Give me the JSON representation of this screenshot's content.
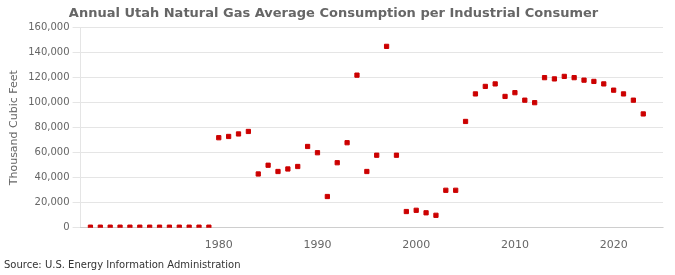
{
  "chart_data": {
    "type": "scatter",
    "title": "Annual Utah Natural Gas Average Consumption per Industrial Consumer",
    "ylabel": "Thousand Cubic Feet",
    "source": "Source: U.S. Energy Information Administration",
    "x": [
      1967,
      1968,
      1969,
      1970,
      1971,
      1972,
      1973,
      1974,
      1975,
      1976,
      1977,
      1978,
      1979,
      1980,
      1981,
      1982,
      1983,
      1984,
      1985,
      1986,
      1987,
      1988,
      1989,
      1990,
      1991,
      1992,
      1993,
      1994,
      1995,
      1996,
      1997,
      1998,
      1999,
      2000,
      2001,
      2002,
      2003,
      2004,
      2005,
      2006,
      2007,
      2008,
      2009,
      2010,
      2011,
      2012,
      2013,
      2014,
      2015,
      2016,
      2017,
      2018,
      2019,
      2020,
      2021,
      2022,
      2023
    ],
    "values": [
      500,
      500,
      500,
      500,
      500,
      500,
      500,
      500,
      500,
      500,
      500,
      500,
      500,
      72000,
      73000,
      75000,
      77000,
      43000,
      50000,
      45000,
      47000,
      49000,
      65000,
      60000,
      25000,
      52000,
      68000,
      122000,
      45000,
      58000,
      145000,
      58000,
      13000,
      14000,
      12000,
      10000,
      30000,
      30000,
      85000,
      107000,
      113000,
      115000,
      105000,
      108000,
      102000,
      100000,
      120000,
      119000,
      121000,
      120000,
      118000,
      117000,
      115000,
      110000,
      107000,
      102000,
      91000
    ],
    "color": "#cc0000",
    "marker": "square",
    "xlim": [
      1966,
      2025
    ],
    "xticks": [
      1980,
      1990,
      2000,
      2010,
      2020
    ],
    "ylim": [
      0,
      160000
    ],
    "yticks": [
      0,
      {
        "value": 20000,
        "label": "20,000"
      },
      {
        "value": 40000,
        "label": "40,000"
      },
      {
        "value": 60000,
        "label": "60,000"
      },
      {
        "value": 80000,
        "label": "80,000"
      },
      {
        "value": 100000,
        "label": "100,000"
      },
      {
        "value": 120000,
        "label": "120,000"
      },
      {
        "value": 140000,
        "label": "140,000"
      },
      {
        "value": 160000,
        "label": "160,000"
      }
    ],
    "grid": "y"
  }
}
